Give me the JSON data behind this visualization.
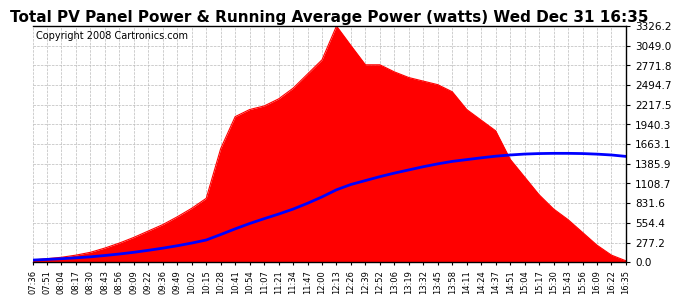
{
  "title": "Total PV Panel Power & Running Average Power (watts) Wed Dec 31 16:35",
  "copyright": "Copyright 2008 Cartronics.com",
  "yticks": [
    0.0,
    277.2,
    554.4,
    831.6,
    1108.7,
    1385.9,
    1663.1,
    1940.3,
    2217.5,
    2494.7,
    2771.8,
    3049.0,
    3326.2
  ],
  "ymax": 3326.2,
  "ymin": 0.0,
  "fill_color": "#FF0000",
  "line_color": "#0000FF",
  "bg_color": "#FFFFFF",
  "grid_color": "#BBBBBB",
  "title_fontsize": 11,
  "copyright_fontsize": 7,
  "x_times": [
    "07:36",
    "07:51",
    "08:04",
    "08:17",
    "08:30",
    "08:43",
    "08:56",
    "09:09",
    "09:22",
    "09:36",
    "09:49",
    "10:02",
    "10:15",
    "10:28",
    "10:41",
    "10:54",
    "11:07",
    "11:21",
    "11:34",
    "11:47",
    "12:00",
    "12:13",
    "12:26",
    "12:39",
    "12:52",
    "13:06",
    "13:19",
    "13:32",
    "13:45",
    "13:58",
    "14:11",
    "14:24",
    "14:37",
    "14:51",
    "15:04",
    "15:17",
    "15:30",
    "15:43",
    "15:56",
    "16:09",
    "16:22",
    "16:35"
  ],
  "pv_power": [
    30,
    50,
    70,
    100,
    140,
    200,
    270,
    350,
    440,
    530,
    640,
    760,
    900,
    1600,
    2050,
    2150,
    2200,
    2300,
    2450,
    2650,
    2850,
    3326,
    3050,
    2780,
    2780,
    2680,
    2600,
    2550,
    2500,
    2400,
    2150,
    2000,
    1850,
    1450,
    1200,
    950,
    750,
    600,
    420,
    240,
    100,
    20
  ],
  "running_avg": [
    30,
    40,
    50,
    62,
    76,
    95,
    116,
    140,
    168,
    198,
    232,
    270,
    313,
    390,
    470,
    545,
    613,
    678,
    748,
    830,
    920,
    1020,
    1095,
    1150,
    1205,
    1255,
    1300,
    1345,
    1385,
    1420,
    1445,
    1470,
    1493,
    1510,
    1523,
    1530,
    1533,
    1533,
    1530,
    1522,
    1510,
    1490
  ]
}
